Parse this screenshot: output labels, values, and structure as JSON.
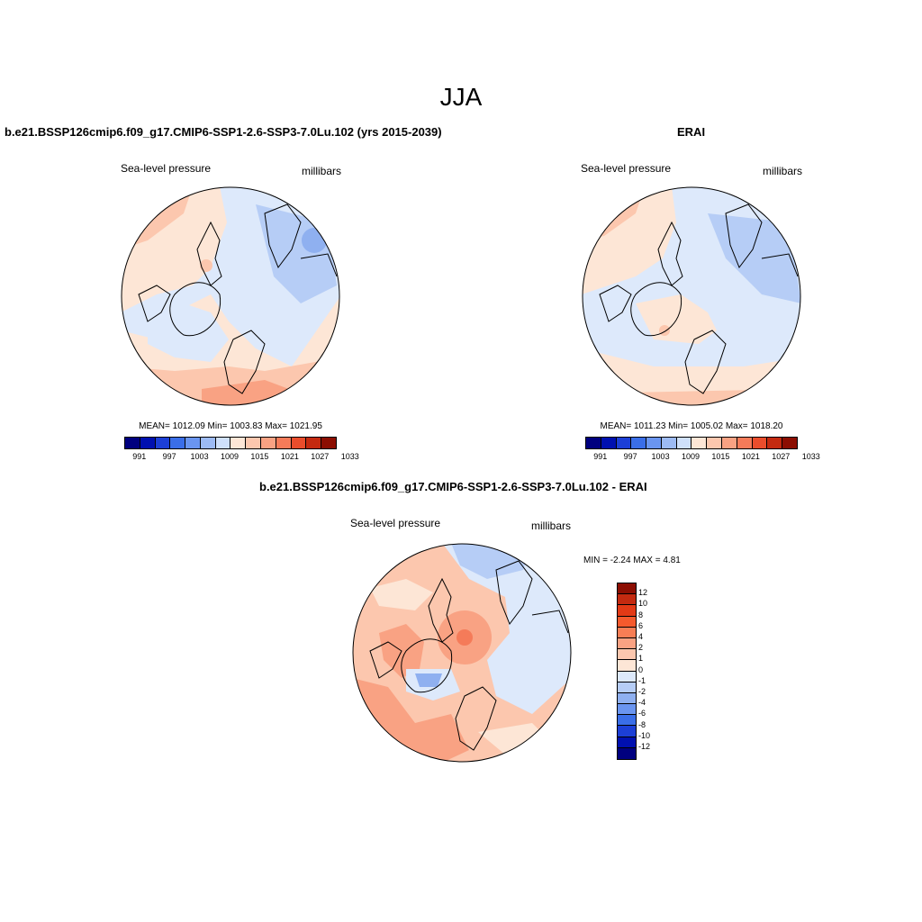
{
  "title": "JJA",
  "panels": {
    "model": {
      "title": "b.e21.BSSP126cmip6.f09_g17.CMIP6-SSP1-2.6-SSP3-7.0Lu.102 (yrs 2015-2039)",
      "variable": "Sea-level pressure",
      "units": "millibars",
      "stats": "MEAN= 1012.09  Min= 1003.83  Max= 1021.95"
    },
    "obs": {
      "title": "ERAI",
      "variable": "Sea-level pressure",
      "units": "millibars",
      "stats": "MEAN= 1011.23  Min= 1005.02  Max= 1018.20"
    },
    "diff": {
      "title": "b.e21.BSSP126cmip6.f09_g17.CMIP6-SSP1-2.6-SSP3-7.0Lu.102 - ERAI",
      "variable": "Sea-level pressure",
      "units": "millibars",
      "stats": "MIN =  -2.24 MAX =   4.81"
    }
  },
  "colorbar_abs": {
    "colors": [
      "#00007f",
      "#0010b0",
      "#1c3fd6",
      "#3a6ee8",
      "#6a95f0",
      "#9dbbf4",
      "#cfe0fa",
      "#fde6d6",
      "#fcc7ae",
      "#f9a283",
      "#f57b59",
      "#ea4d2c",
      "#c42a10",
      "#8c0e02"
    ],
    "labels": [
      "991",
      "997",
      "1003",
      "1009",
      "1015",
      "1021",
      "1027",
      "1033"
    ]
  },
  "colorbar_diff": {
    "colors": [
      "#8c0e02",
      "#c42a10",
      "#e33a16",
      "#f55a2d",
      "#f77e55",
      "#f9a283",
      "#fcc7ae",
      "#fde6d6",
      "#dde9fb",
      "#b6cdf6",
      "#8fb0f0",
      "#6a95f0",
      "#3a6ee8",
      "#1c3fd6",
      "#0010b0",
      "#00007f"
    ],
    "labels": [
      "12",
      "10",
      "8",
      "6",
      "4",
      "2",
      "1",
      "0",
      "-1",
      "-2",
      "-4",
      "-6",
      "-8",
      "-10",
      "-12"
    ]
  }
}
